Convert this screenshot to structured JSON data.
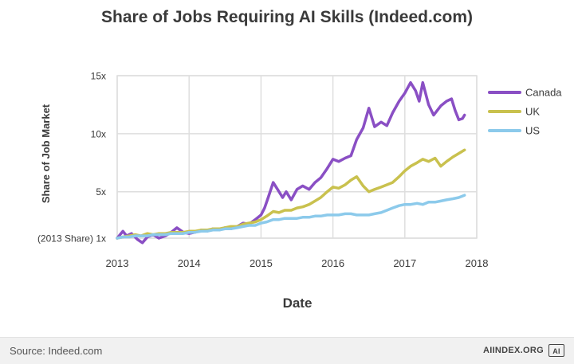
{
  "title": "Share of Jobs Requiring AI Skills (Indeed.com)",
  "footer": {
    "source": "Source: Indeed.com",
    "brand": "AIINDEX.ORG",
    "brand_logo": "AI"
  },
  "colors": {
    "canada": "#8a4fc4",
    "uk": "#c9c14e",
    "us": "#8ccaeb",
    "grid": "#dedede"
  },
  "chart_data": {
    "type": "line",
    "title": "Share of Jobs Requiring AI Skills (Indeed.com)",
    "xlabel": "Date",
    "ylabel": "Share of Job Market",
    "xlim": [
      2013,
      2018
    ],
    "ylim": [
      1,
      15
    ],
    "x_ticks": [
      2013,
      2014,
      2015,
      2016,
      2017,
      2018
    ],
    "x_tick_labels": [
      "2013",
      "2014",
      "2015",
      "2016",
      "2017",
      "2018"
    ],
    "y_ticks": [
      1,
      5,
      10,
      15
    ],
    "y_tick_labels": [
      "(2013 Share) 1x",
      "5x",
      "10x",
      "15x"
    ],
    "grid": true,
    "legend_position": "right",
    "series": [
      {
        "name": "Canada",
        "color": "#8a4fc4",
        "points": [
          [
            2013.0,
            1.0
          ],
          [
            2013.08,
            1.6
          ],
          [
            2013.13,
            1.2
          ],
          [
            2013.2,
            1.4
          ],
          [
            2013.28,
            0.9
          ],
          [
            2013.35,
            0.6
          ],
          [
            2013.42,
            1.1
          ],
          [
            2013.5,
            1.3
          ],
          [
            2013.58,
            1.0
          ],
          [
            2013.67,
            1.2
          ],
          [
            2013.75,
            1.5
          ],
          [
            2013.83,
            1.9
          ],
          [
            2013.92,
            1.5
          ],
          [
            2014.0,
            1.4
          ],
          [
            2014.08,
            1.5
          ],
          [
            2014.17,
            1.7
          ],
          [
            2014.25,
            1.6
          ],
          [
            2014.33,
            1.8
          ],
          [
            2014.42,
            1.7
          ],
          [
            2014.5,
            1.9
          ],
          [
            2014.58,
            1.8
          ],
          [
            2014.67,
            2.0
          ],
          [
            2014.75,
            2.3
          ],
          [
            2014.83,
            2.2
          ],
          [
            2014.92,
            2.6
          ],
          [
            2015.0,
            3.0
          ],
          [
            2015.05,
            3.6
          ],
          [
            2015.1,
            4.5
          ],
          [
            2015.17,
            5.8
          ],
          [
            2015.25,
            5.0
          ],
          [
            2015.3,
            4.5
          ],
          [
            2015.35,
            5.0
          ],
          [
            2015.42,
            4.3
          ],
          [
            2015.5,
            5.2
          ],
          [
            2015.58,
            5.5
          ],
          [
            2015.67,
            5.2
          ],
          [
            2015.75,
            5.8
          ],
          [
            2015.83,
            6.2
          ],
          [
            2015.92,
            7.0
          ],
          [
            2016.0,
            7.8
          ],
          [
            2016.08,
            7.6
          ],
          [
            2016.17,
            7.9
          ],
          [
            2016.25,
            8.1
          ],
          [
            2016.33,
            9.5
          ],
          [
            2016.42,
            10.5
          ],
          [
            2016.5,
            12.2
          ],
          [
            2016.58,
            10.6
          ],
          [
            2016.67,
            11.0
          ],
          [
            2016.75,
            10.7
          ],
          [
            2016.83,
            11.8
          ],
          [
            2016.92,
            12.8
          ],
          [
            2017.0,
            13.5
          ],
          [
            2017.08,
            14.4
          ],
          [
            2017.15,
            13.7
          ],
          [
            2017.2,
            12.8
          ],
          [
            2017.25,
            14.4
          ],
          [
            2017.33,
            12.5
          ],
          [
            2017.4,
            11.6
          ],
          [
            2017.5,
            12.4
          ],
          [
            2017.58,
            12.8
          ],
          [
            2017.65,
            13.0
          ],
          [
            2017.7,
            12.0
          ],
          [
            2017.75,
            11.2
          ],
          [
            2017.8,
            11.3
          ],
          [
            2017.83,
            11.6
          ]
        ]
      },
      {
        "name": "UK",
        "color": "#c9c14e",
        "points": [
          [
            2013.0,
            1.0
          ],
          [
            2013.08,
            1.1
          ],
          [
            2013.17,
            1.2
          ],
          [
            2013.25,
            1.3
          ],
          [
            2013.33,
            1.2
          ],
          [
            2013.42,
            1.4
          ],
          [
            2013.5,
            1.3
          ],
          [
            2013.58,
            1.4
          ],
          [
            2013.67,
            1.4
          ],
          [
            2013.75,
            1.5
          ],
          [
            2013.83,
            1.5
          ],
          [
            2013.92,
            1.5
          ],
          [
            2014.0,
            1.6
          ],
          [
            2014.08,
            1.6
          ],
          [
            2014.17,
            1.7
          ],
          [
            2014.25,
            1.7
          ],
          [
            2014.33,
            1.8
          ],
          [
            2014.42,
            1.8
          ],
          [
            2014.5,
            1.9
          ],
          [
            2014.58,
            2.0
          ],
          [
            2014.67,
            2.0
          ],
          [
            2014.75,
            2.2
          ],
          [
            2014.83,
            2.3
          ],
          [
            2014.92,
            2.4
          ],
          [
            2015.0,
            2.6
          ],
          [
            2015.08,
            2.9
          ],
          [
            2015.17,
            3.3
          ],
          [
            2015.25,
            3.2
          ],
          [
            2015.33,
            3.4
          ],
          [
            2015.42,
            3.4
          ],
          [
            2015.5,
            3.6
          ],
          [
            2015.58,
            3.7
          ],
          [
            2015.67,
            3.9
          ],
          [
            2015.75,
            4.2
          ],
          [
            2015.83,
            4.5
          ],
          [
            2015.92,
            5.0
          ],
          [
            2016.0,
            5.4
          ],
          [
            2016.08,
            5.3
          ],
          [
            2016.17,
            5.6
          ],
          [
            2016.25,
            6.0
          ],
          [
            2016.33,
            6.3
          ],
          [
            2016.42,
            5.5
          ],
          [
            2016.5,
            5.0
          ],
          [
            2016.58,
            5.2
          ],
          [
            2016.67,
            5.4
          ],
          [
            2016.75,
            5.6
          ],
          [
            2016.83,
            5.8
          ],
          [
            2016.92,
            6.3
          ],
          [
            2017.0,
            6.8
          ],
          [
            2017.08,
            7.2
          ],
          [
            2017.17,
            7.5
          ],
          [
            2017.25,
            7.8
          ],
          [
            2017.33,
            7.6
          ],
          [
            2017.42,
            7.9
          ],
          [
            2017.5,
            7.2
          ],
          [
            2017.58,
            7.6
          ],
          [
            2017.67,
            8.0
          ],
          [
            2017.75,
            8.3
          ],
          [
            2017.83,
            8.6
          ]
        ]
      },
      {
        "name": "US",
        "color": "#8ccaeb",
        "points": [
          [
            2013.0,
            1.0
          ],
          [
            2013.08,
            1.1
          ],
          [
            2013.17,
            1.1
          ],
          [
            2013.25,
            1.2
          ],
          [
            2013.33,
            1.2
          ],
          [
            2013.42,
            1.2
          ],
          [
            2013.5,
            1.3
          ],
          [
            2013.58,
            1.3
          ],
          [
            2013.67,
            1.3
          ],
          [
            2013.75,
            1.4
          ],
          [
            2013.83,
            1.4
          ],
          [
            2013.92,
            1.4
          ],
          [
            2014.0,
            1.5
          ],
          [
            2014.08,
            1.5
          ],
          [
            2014.17,
            1.6
          ],
          [
            2014.25,
            1.6
          ],
          [
            2014.33,
            1.7
          ],
          [
            2014.42,
            1.7
          ],
          [
            2014.5,
            1.8
          ],
          [
            2014.58,
            1.8
          ],
          [
            2014.67,
            1.9
          ],
          [
            2014.75,
            2.0
          ],
          [
            2014.83,
            2.1
          ],
          [
            2014.92,
            2.1
          ],
          [
            2015.0,
            2.3
          ],
          [
            2015.08,
            2.4
          ],
          [
            2015.17,
            2.6
          ],
          [
            2015.25,
            2.6
          ],
          [
            2015.33,
            2.7
          ],
          [
            2015.42,
            2.7
          ],
          [
            2015.5,
            2.7
          ],
          [
            2015.58,
            2.8
          ],
          [
            2015.67,
            2.8
          ],
          [
            2015.75,
            2.9
          ],
          [
            2015.83,
            2.9
          ],
          [
            2015.92,
            3.0
          ],
          [
            2016.0,
            3.0
          ],
          [
            2016.08,
            3.0
          ],
          [
            2016.17,
            3.1
          ],
          [
            2016.25,
            3.1
          ],
          [
            2016.33,
            3.0
          ],
          [
            2016.42,
            3.0
          ],
          [
            2016.5,
            3.0
          ],
          [
            2016.58,
            3.1
          ],
          [
            2016.67,
            3.2
          ],
          [
            2016.75,
            3.4
          ],
          [
            2016.83,
            3.6
          ],
          [
            2016.92,
            3.8
          ],
          [
            2017.0,
            3.9
          ],
          [
            2017.08,
            3.9
          ],
          [
            2017.17,
            4.0
          ],
          [
            2017.25,
            3.9
          ],
          [
            2017.33,
            4.1
          ],
          [
            2017.42,
            4.1
          ],
          [
            2017.5,
            4.2
          ],
          [
            2017.58,
            4.3
          ],
          [
            2017.67,
            4.4
          ],
          [
            2017.75,
            4.5
          ],
          [
            2017.83,
            4.7
          ]
        ]
      }
    ]
  }
}
